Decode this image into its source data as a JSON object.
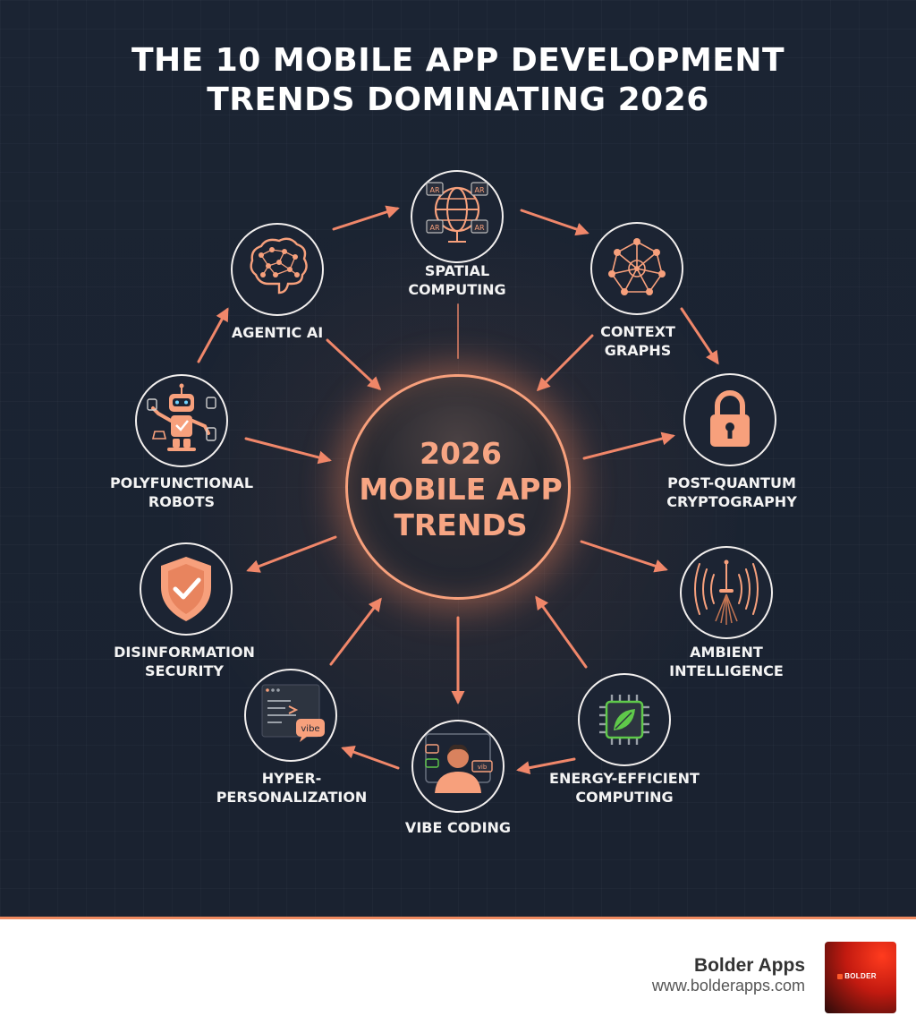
{
  "title": {
    "line1": "THE 10 MOBILE APP DEVELOPMENT",
    "line2": "TRENDS DOMINATING 2026"
  },
  "hub": {
    "line1": "2026",
    "line2": "MOBILE APP",
    "line3": "TRENDS"
  },
  "trends": [
    {
      "id": "spatial-computing",
      "icon": "ar-globe-icon",
      "lines": [
        "SPATIAL",
        "COMPUTING"
      ]
    },
    {
      "id": "context-graphs",
      "icon": "network-graph-icon",
      "lines": [
        "CONTEXT",
        "GRAPHS"
      ]
    },
    {
      "id": "post-quantum-cryptography",
      "icon": "padlock-icon",
      "lines": [
        "POST-QUANTUM",
        "CRYPTOGRAPHY"
      ]
    },
    {
      "id": "ambient-intelligence",
      "icon": "signal-waves-icon",
      "lines": [
        "AMBIENT",
        "INTELLIGENCE"
      ]
    },
    {
      "id": "energy-efficient-computing",
      "icon": "leaf-chip-icon",
      "lines": [
        "ENERGY-EFFICIENT",
        "COMPUTING"
      ]
    },
    {
      "id": "vibe-coding",
      "icon": "person-chat-icon",
      "lines": [
        "VIBE CODING"
      ]
    },
    {
      "id": "hyper-personalization",
      "icon": "code-window-icon",
      "lines": [
        "HYPER-",
        "PERSONALIZATION"
      ]
    },
    {
      "id": "disinformation-security",
      "icon": "shield-check-icon",
      "lines": [
        "DISINFORMATION",
        "SECURITY"
      ]
    },
    {
      "id": "polyfunctional-robots",
      "icon": "robot-icon",
      "lines": [
        "POLYFUNCTIONAL",
        "ROBOTS"
      ]
    },
    {
      "id": "agentic-ai",
      "icon": "brain-network-icon",
      "lines": [
        "AGENTIC AI"
      ]
    }
  ],
  "icon_text": {
    "ar": "AR",
    "vibe": "vibe",
    "vibe_short": "vib"
  },
  "footer": {
    "brand_name": "Bolder Apps",
    "brand_url": "www.bolderapps.com",
    "logo_text": "BOLDER"
  },
  "colors": {
    "background": "#1b2433",
    "accent": "#f7a07c",
    "arrow": "#f0876a",
    "chip_green": "#5fc94a",
    "footer_rule": "#f08a60"
  }
}
